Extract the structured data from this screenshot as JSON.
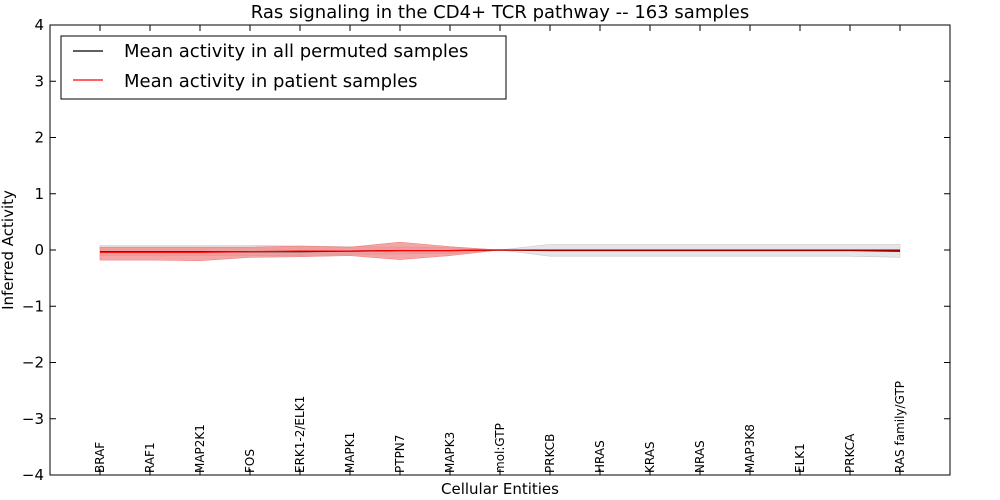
{
  "chart_data": {
    "type": "line",
    "title": "Ras signaling in the CD4+ TCR pathway -- 163 samples",
    "xlabel": "Cellular Entities",
    "ylabel": "Inferred Activity",
    "ylim": [
      -4,
      4
    ],
    "yticks": [
      4,
      3,
      2,
      1,
      0,
      -1,
      -2,
      -3,
      -4
    ],
    "ytick_labels": [
      "4",
      "3",
      "2",
      "1",
      "0",
      "−1",
      "−2",
      "−3",
      "−4"
    ],
    "categories": [
      "BRAF",
      "RAF1",
      "MAP2K1",
      "FOS",
      "ERK1-2/ELK1",
      "MAPK1",
      "PTPN7",
      "MAPK3",
      "mol:GTP",
      "PRKCB",
      "HRAS",
      "KRAS",
      "NRAS",
      "MAP3K8",
      "ELK1",
      "PRKCA",
      "RAS family/GTP"
    ],
    "legend_position": "top-left",
    "series": [
      {
        "name": "Mean activity in all permuted samples",
        "color": "#000000",
        "band_color": "#c8c8c8",
        "values": [
          -0.03,
          -0.03,
          -0.03,
          -0.03,
          -0.03,
          -0.02,
          -0.01,
          -0.01,
          0.0,
          -0.01,
          -0.01,
          -0.01,
          -0.01,
          -0.01,
          -0.01,
          -0.01,
          -0.02
        ],
        "band_low": [
          -0.1,
          -0.1,
          -0.1,
          -0.1,
          -0.1,
          -0.08,
          -0.07,
          -0.06,
          0.0,
          -0.11,
          -0.11,
          -0.11,
          -0.11,
          -0.11,
          -0.11,
          -0.11,
          -0.13
        ],
        "band_high": [
          0.08,
          0.08,
          0.08,
          0.08,
          0.07,
          0.06,
          0.05,
          0.05,
          0.0,
          0.1,
          0.1,
          0.1,
          0.1,
          0.1,
          0.1,
          0.1,
          0.1
        ]
      },
      {
        "name": "Mean activity in patient samples",
        "color": "#ff0000",
        "band_color": "#f08080",
        "values": [
          -0.04,
          -0.04,
          -0.04,
          -0.03,
          -0.02,
          -0.02,
          -0.01,
          -0.01,
          0.0,
          0.0,
          0.0,
          0.0,
          0.0,
          0.0,
          0.0,
          0.0,
          0.0
        ],
        "band_low": [
          -0.18,
          -0.18,
          -0.19,
          -0.13,
          -0.12,
          -0.1,
          -0.17,
          -0.1,
          0.0,
          0.0,
          0.0,
          0.0,
          0.0,
          0.0,
          0.0,
          0.0,
          0.0
        ],
        "band_high": [
          0.05,
          0.05,
          0.05,
          0.05,
          0.07,
          0.05,
          0.14,
          0.06,
          0.0,
          0.0,
          0.0,
          0.0,
          0.0,
          0.0,
          0.0,
          0.0,
          0.0
        ]
      }
    ]
  }
}
